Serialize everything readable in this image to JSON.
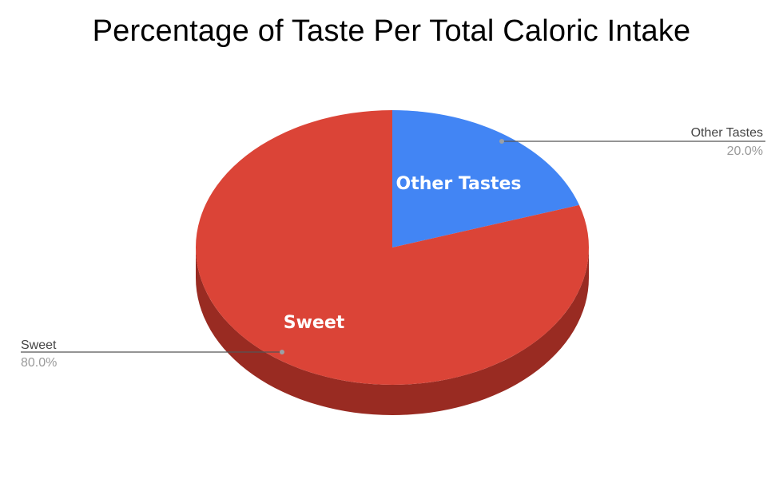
{
  "chart_data": {
    "type": "pie",
    "title": "Percentage of Taste Per Total Caloric Intake",
    "slices": [
      {
        "label": "Other Tastes",
        "value": 20.0,
        "value_label": "20.0%",
        "color": "#4285f4"
      },
      {
        "label": "Sweet",
        "value": 80.0,
        "value_label": "80.0%",
        "color": "#db4437",
        "side_color": "#992b22"
      }
    ],
    "start_angle": "top (12 o'clock), clockwise",
    "style": "3d"
  }
}
